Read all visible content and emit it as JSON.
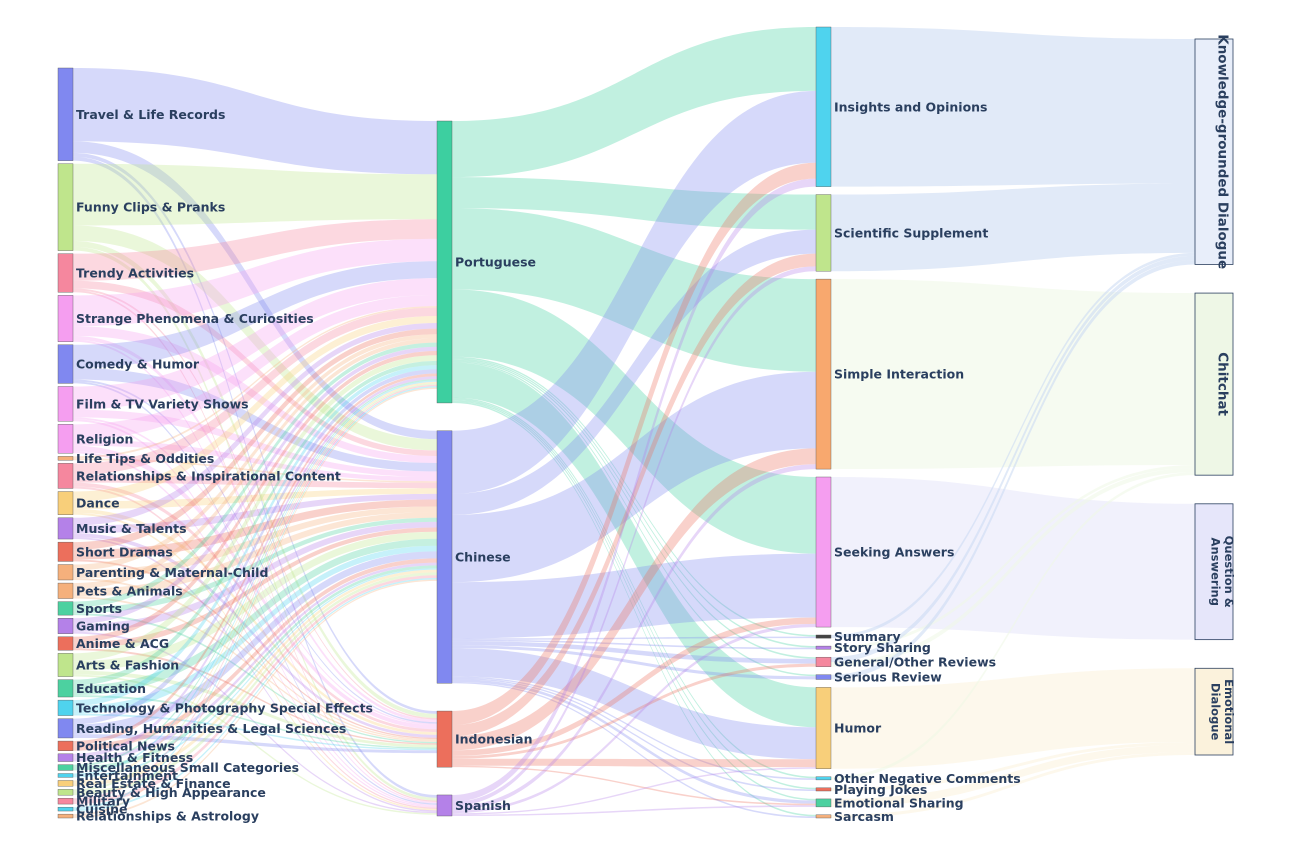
{
  "chart_data": {
    "type": "sankey",
    "title": "",
    "columns": [
      {
        "level": "category",
        "nodes": [
          {
            "id": "c0",
            "label": "Travel & Life Records",
            "color": "#8088f0"
          },
          {
            "id": "c1",
            "label": "Funny Clips & Pranks",
            "color": "#bfe58c"
          },
          {
            "id": "c2",
            "label": "Trendy Activities",
            "color": "#f5879e"
          },
          {
            "id": "c3",
            "label": "Strange Phenomena & Curiosities",
            "color": "#f59ef0"
          },
          {
            "id": "c4",
            "label": "Comedy & Humor",
            "color": "#8088f0"
          },
          {
            "id": "c5",
            "label": "Film & TV Variety Shows",
            "color": "#f59ef0"
          },
          {
            "id": "c6",
            "label": "Religion",
            "color": "#f59ef0"
          },
          {
            "id": "c7",
            "label": "Life Tips & Oddities",
            "color": "#f5b07c"
          },
          {
            "id": "c8",
            "label": "Relationships & Inspirational Content",
            "color": "#f5879e"
          },
          {
            "id": "c9",
            "label": "Dance",
            "color": "#f8cf7a"
          },
          {
            "id": "c10",
            "label": "Music & Talents",
            "color": "#b481e8"
          },
          {
            "id": "c11",
            "label": "Short Dramas",
            "color": "#ec6f5c"
          },
          {
            "id": "c12",
            "label": "Parenting & Maternal-Child",
            "color": "#f5b07c"
          },
          {
            "id": "c13",
            "label": "Pets & Animals",
            "color": "#f5b07c"
          },
          {
            "id": "c14",
            "label": "Sports",
            "color": "#4cd1a0"
          },
          {
            "id": "c15",
            "label": "Gaming",
            "color": "#b481e8"
          },
          {
            "id": "c16",
            "label": "Anime & ACG",
            "color": "#ec6f5c"
          },
          {
            "id": "c17",
            "label": "Arts & Fashion",
            "color": "#bfe58c"
          },
          {
            "id": "c18",
            "label": "Education",
            "color": "#4cd1a0"
          },
          {
            "id": "c19",
            "label": "Technology & Photography Special Effects",
            "color": "#4fd3ee"
          },
          {
            "id": "c20",
            "label": "Reading, Humanities & Legal Sciences",
            "color": "#8088f0"
          },
          {
            "id": "c21",
            "label": "Political News",
            "color": "#ec6f5c"
          },
          {
            "id": "c22",
            "label": "Health & Fitness",
            "color": "#b481e8"
          },
          {
            "id": "c23",
            "label": "Miscellaneous Small Categories",
            "color": "#4cd1a0"
          },
          {
            "id": "c24",
            "label": "Entertainment",
            "color": "#4fd3ee"
          },
          {
            "id": "c25",
            "label": "Real Estate & Finance",
            "color": "#f8cf7a"
          },
          {
            "id": "c26",
            "label": "Beauty & High Appearance",
            "color": "#bfe58c"
          },
          {
            "id": "c27",
            "label": "Military",
            "color": "#f5879e"
          },
          {
            "id": "c28",
            "label": "Cuisine",
            "color": "#4fd3ee"
          },
          {
            "id": "c29",
            "label": "Relationships & Astrology",
            "color": "#f5b07c"
          }
        ]
      },
      {
        "level": "language",
        "nodes": [
          {
            "id": "l0",
            "label": "Portuguese",
            "color": "#3dcfa0"
          },
          {
            "id": "l1",
            "label": "Chinese",
            "color": "#8088f0"
          },
          {
            "id": "l2",
            "label": "Indonesian",
            "color": "#ec6f5c"
          },
          {
            "id": "l3",
            "label": "Spanish",
            "color": "#b481e8"
          }
        ]
      },
      {
        "level": "comment type",
        "nodes": [
          {
            "id": "t0",
            "label": "Insights and Opinions",
            "color": "#4fd3ee"
          },
          {
            "id": "t1",
            "label": "Scientific Supplement",
            "color": "#bfe58c"
          },
          {
            "id": "t2",
            "label": "Simple Interaction",
            "color": "#f8a86e"
          },
          {
            "id": "t3",
            "label": "Seeking Answers",
            "color": "#f59ef0"
          },
          {
            "id": "t4",
            "label": "Summary",
            "color": "#444444"
          },
          {
            "id": "t5",
            "label": "Story Sharing",
            "color": "#b481e8"
          },
          {
            "id": "t6",
            "label": "General/Other Reviews",
            "color": "#f5879e"
          },
          {
            "id": "t7",
            "label": "Serious Review",
            "color": "#8088f0"
          },
          {
            "id": "t8",
            "label": "Humor",
            "color": "#f8cf7a"
          },
          {
            "id": "t9",
            "label": "Other Negative Comments",
            "color": "#4fd3ee"
          },
          {
            "id": "t10",
            "label": "Playing Jokes",
            "color": "#ec6f5c"
          },
          {
            "id": "t11",
            "label": "Emotional Sharing",
            "color": "#4cd1a0"
          },
          {
            "id": "t12",
            "label": "Sarcasm",
            "color": "#f5b07c"
          }
        ]
      },
      {
        "level": "dialogue type",
        "nodes": [
          {
            "id": "d0",
            "label": "Knowledge-grounded Dialogue",
            "label_lines": [
              "Knowledge-grounded Dialogue"
            ],
            "color": "#e8eefa"
          },
          {
            "id": "d1",
            "label": "Chitchat",
            "label_lines": [
              "Chitchat"
            ],
            "color": "#eef7e6"
          },
          {
            "id": "d2",
            "label": "Question & Answering",
            "label_lines": [
              "Question &",
              "Answering"
            ],
            "color": "#e6e6fa"
          },
          {
            "id": "d3",
            "label": "Emotional Dialogue",
            "label_lines": [
              "Emotional",
              "Dialogue"
            ],
            "color": "#fbf2dc"
          }
        ]
      }
    ],
    "links": [
      {
        "source": "c0",
        "target": "l0",
        "value": 38
      },
      {
        "source": "c0",
        "target": "l1",
        "value": 6
      },
      {
        "source": "c0",
        "target": "l2",
        "value": 2
      },
      {
        "source": "c0",
        "target": "l3",
        "value": 2
      },
      {
        "source": "c1",
        "target": "l0",
        "value": 32
      },
      {
        "source": "c1",
        "target": "l1",
        "value": 8
      },
      {
        "source": "c1",
        "target": "l2",
        "value": 3
      },
      {
        "source": "c1",
        "target": "l3",
        "value": 2
      },
      {
        "source": "c2",
        "target": "l0",
        "value": 14
      },
      {
        "source": "c2",
        "target": "l1",
        "value": 4
      },
      {
        "source": "c2",
        "target": "l2",
        "value": 1
      },
      {
        "source": "c2",
        "target": "l3",
        "value": 1
      },
      {
        "source": "c3",
        "target": "l0",
        "value": 16
      },
      {
        "source": "c3",
        "target": "l1",
        "value": 5
      },
      {
        "source": "c3",
        "target": "l2",
        "value": 2
      },
      {
        "source": "c3",
        "target": "l3",
        "value": 1
      },
      {
        "source": "c4",
        "target": "l0",
        "value": 12
      },
      {
        "source": "c4",
        "target": "l1",
        "value": 6
      },
      {
        "source": "c4",
        "target": "l2",
        "value": 1
      },
      {
        "source": "c4",
        "target": "l3",
        "value": 1
      },
      {
        "source": "c5",
        "target": "l0",
        "value": 12
      },
      {
        "source": "c5",
        "target": "l1",
        "value": 4
      },
      {
        "source": "c5",
        "target": "l2",
        "value": 1
      },
      {
        "source": "c5",
        "target": "l3",
        "value": 1
      },
      {
        "source": "c6",
        "target": "l0",
        "value": 8
      },
      {
        "source": "c6",
        "target": "l1",
        "value": 3
      },
      {
        "source": "c6",
        "target": "l2",
        "value": 3
      },
      {
        "source": "c6",
        "target": "l3",
        "value": 1
      },
      {
        "source": "c7",
        "target": "l0",
        "value": 1
      },
      {
        "source": "c7",
        "target": "l1",
        "value": 1
      },
      {
        "source": "c8",
        "target": "l0",
        "value": 6
      },
      {
        "source": "c8",
        "target": "l1",
        "value": 4
      },
      {
        "source": "c8",
        "target": "l2",
        "value": 2
      },
      {
        "source": "c8",
        "target": "l3",
        "value": 1
      },
      {
        "source": "c9",
        "target": "l0",
        "value": 5
      },
      {
        "source": "c9",
        "target": "l1",
        "value": 4
      },
      {
        "source": "c9",
        "target": "l2",
        "value": 2
      },
      {
        "source": "c9",
        "target": "l3",
        "value": 1
      },
      {
        "source": "c10",
        "target": "l0",
        "value": 4
      },
      {
        "source": "c10",
        "target": "l1",
        "value": 4
      },
      {
        "source": "c10",
        "target": "l2",
        "value": 2
      },
      {
        "source": "c10",
        "target": "l3",
        "value": 1
      },
      {
        "source": "c11",
        "target": "l0",
        "value": 4
      },
      {
        "source": "c11",
        "target": "l1",
        "value": 5
      },
      {
        "source": "c11",
        "target": "l2",
        "value": 1
      },
      {
        "source": "c12",
        "target": "l0",
        "value": 3
      },
      {
        "source": "c12",
        "target": "l1",
        "value": 4
      },
      {
        "source": "c12",
        "target": "l2",
        "value": 1
      },
      {
        "source": "c13",
        "target": "l0",
        "value": 3
      },
      {
        "source": "c13",
        "target": "l1",
        "value": 4
      },
      {
        "source": "c13",
        "target": "l2",
        "value": 1
      },
      {
        "source": "c14",
        "target": "l0",
        "value": 3
      },
      {
        "source": "c14",
        "target": "l1",
        "value": 3
      },
      {
        "source": "c14",
        "target": "l2",
        "value": 1
      },
      {
        "source": "c15",
        "target": "l0",
        "value": 3
      },
      {
        "source": "c15",
        "target": "l1",
        "value": 4
      },
      {
        "source": "c15",
        "target": "l3",
        "value": 1
      },
      {
        "source": "c16",
        "target": "l0",
        "value": 3
      },
      {
        "source": "c16",
        "target": "l1",
        "value": 3
      },
      {
        "source": "c16",
        "target": "l2",
        "value": 1
      },
      {
        "source": "c17",
        "target": "l0",
        "value": 4
      },
      {
        "source": "c17",
        "target": "l1",
        "value": 5
      },
      {
        "source": "c17",
        "target": "l2",
        "value": 2
      },
      {
        "source": "c17",
        "target": "l3",
        "value": 1
      },
      {
        "source": "c18",
        "target": "l0",
        "value": 3
      },
      {
        "source": "c18",
        "target": "l1",
        "value": 5
      },
      {
        "source": "c18",
        "target": "l2",
        "value": 1
      },
      {
        "source": "c19",
        "target": "l0",
        "value": 3
      },
      {
        "source": "c19",
        "target": "l1",
        "value": 4
      },
      {
        "source": "c19",
        "target": "l2",
        "value": 1
      },
      {
        "source": "c20",
        "target": "l0",
        "value": 3
      },
      {
        "source": "c20",
        "target": "l1",
        "value": 5
      },
      {
        "source": "c20",
        "target": "l2",
        "value": 2
      },
      {
        "source": "c21",
        "target": "l0",
        "value": 2
      },
      {
        "source": "c21",
        "target": "l1",
        "value": 3
      },
      {
        "source": "c22",
        "target": "l0",
        "value": 2
      },
      {
        "source": "c22",
        "target": "l1",
        "value": 2
      },
      {
        "source": "c23",
        "target": "l0",
        "value": 1
      },
      {
        "source": "c23",
        "target": "l1",
        "value": 2
      },
      {
        "source": "c24",
        "target": "l0",
        "value": 1
      },
      {
        "source": "c24",
        "target": "l1",
        "value": 1
      },
      {
        "source": "c25",
        "target": "l0",
        "value": 1
      },
      {
        "source": "c25",
        "target": "l1",
        "value": 2
      },
      {
        "source": "c26",
        "target": "l0",
        "value": 1
      },
      {
        "source": "c26",
        "target": "l1",
        "value": 2
      },
      {
        "source": "c27",
        "target": "l0",
        "value": 1
      },
      {
        "source": "c27",
        "target": "l1",
        "value": 2
      },
      {
        "source": "c28",
        "target": "l0",
        "value": 1
      },
      {
        "source": "c28",
        "target": "l1",
        "value": 1
      },
      {
        "source": "c29",
        "target": "l0",
        "value": 1
      },
      {
        "source": "c29",
        "target": "l1",
        "value": 1
      },
      {
        "source": "l0",
        "target": "t0",
        "value": 40
      },
      {
        "source": "l0",
        "target": "t1",
        "value": 22
      },
      {
        "source": "l0",
        "target": "t2",
        "value": 58
      },
      {
        "source": "l0",
        "target": "t3",
        "value": 48
      },
      {
        "source": "l0",
        "target": "t4",
        "value": 1
      },
      {
        "source": "l0",
        "target": "t5",
        "value": 1
      },
      {
        "source": "l0",
        "target": "t6",
        "value": 1
      },
      {
        "source": "l0",
        "target": "t7",
        "value": 1
      },
      {
        "source": "l0",
        "target": "t8",
        "value": 25
      },
      {
        "source": "l0",
        "target": "t9",
        "value": 1
      },
      {
        "source": "l0",
        "target": "t10",
        "value": 1
      },
      {
        "source": "l0",
        "target": "t11",
        "value": 1
      },
      {
        "source": "l0",
        "target": "t12",
        "value": 1
      },
      {
        "source": "l1",
        "target": "t0",
        "value": 45
      },
      {
        "source": "l1",
        "target": "t1",
        "value": 15
      },
      {
        "source": "l1",
        "target": "t2",
        "value": 48
      },
      {
        "source": "l1",
        "target": "t3",
        "value": 40
      },
      {
        "source": "l1",
        "target": "t4",
        "value": 1
      },
      {
        "source": "l1",
        "target": "t5",
        "value": 1
      },
      {
        "source": "l1",
        "target": "t6",
        "value": 3
      },
      {
        "source": "l1",
        "target": "t7",
        "value": 2
      },
      {
        "source": "l1",
        "target": "t8",
        "value": 20
      },
      {
        "source": "l1",
        "target": "t9",
        "value": 1
      },
      {
        "source": "l1",
        "target": "t10",
        "value": 1
      },
      {
        "source": "l1",
        "target": "t11",
        "value": 2
      },
      {
        "source": "l1",
        "target": "t12",
        "value": 1
      },
      {
        "source": "l2",
        "target": "t0",
        "value": 10
      },
      {
        "source": "l2",
        "target": "t1",
        "value": 8
      },
      {
        "source": "l2",
        "target": "t2",
        "value": 10
      },
      {
        "source": "l2",
        "target": "t3",
        "value": 4
      },
      {
        "source": "l2",
        "target": "t6",
        "value": 2
      },
      {
        "source": "l2",
        "target": "t8",
        "value": 5
      },
      {
        "source": "l2",
        "target": "t11",
        "value": 1
      },
      {
        "source": "l3",
        "target": "t0",
        "value": 5
      },
      {
        "source": "l3",
        "target": "t1",
        "value": 3
      },
      {
        "source": "l3",
        "target": "t2",
        "value": 3
      },
      {
        "source": "l3",
        "target": "t3",
        "value": 2
      },
      {
        "source": "l3",
        "target": "t8",
        "value": 1
      },
      {
        "source": "l3",
        "target": "t11",
        "value": 1
      },
      {
        "source": "t0",
        "target": "d0",
        "value": 100
      },
      {
        "source": "t1",
        "target": "d0",
        "value": 48
      },
      {
        "source": "t2",
        "target": "d1",
        "value": 119
      },
      {
        "source": "t3",
        "target": "d2",
        "value": 94
      },
      {
        "source": "t4",
        "target": "d0",
        "value": 2
      },
      {
        "source": "t5",
        "target": "d1",
        "value": 2
      },
      {
        "source": "t6",
        "target": "d0",
        "value": 3
      },
      {
        "source": "t6",
        "target": "d1",
        "value": 3
      },
      {
        "source": "t7",
        "target": "d0",
        "value": 3
      },
      {
        "source": "t8",
        "target": "d3",
        "value": 51
      },
      {
        "source": "t9",
        "target": "d1",
        "value": 2
      },
      {
        "source": "t10",
        "target": "d3",
        "value": 2
      },
      {
        "source": "t11",
        "target": "d3",
        "value": 5
      },
      {
        "source": "t12",
        "target": "d3",
        "value": 2
      }
    ]
  }
}
